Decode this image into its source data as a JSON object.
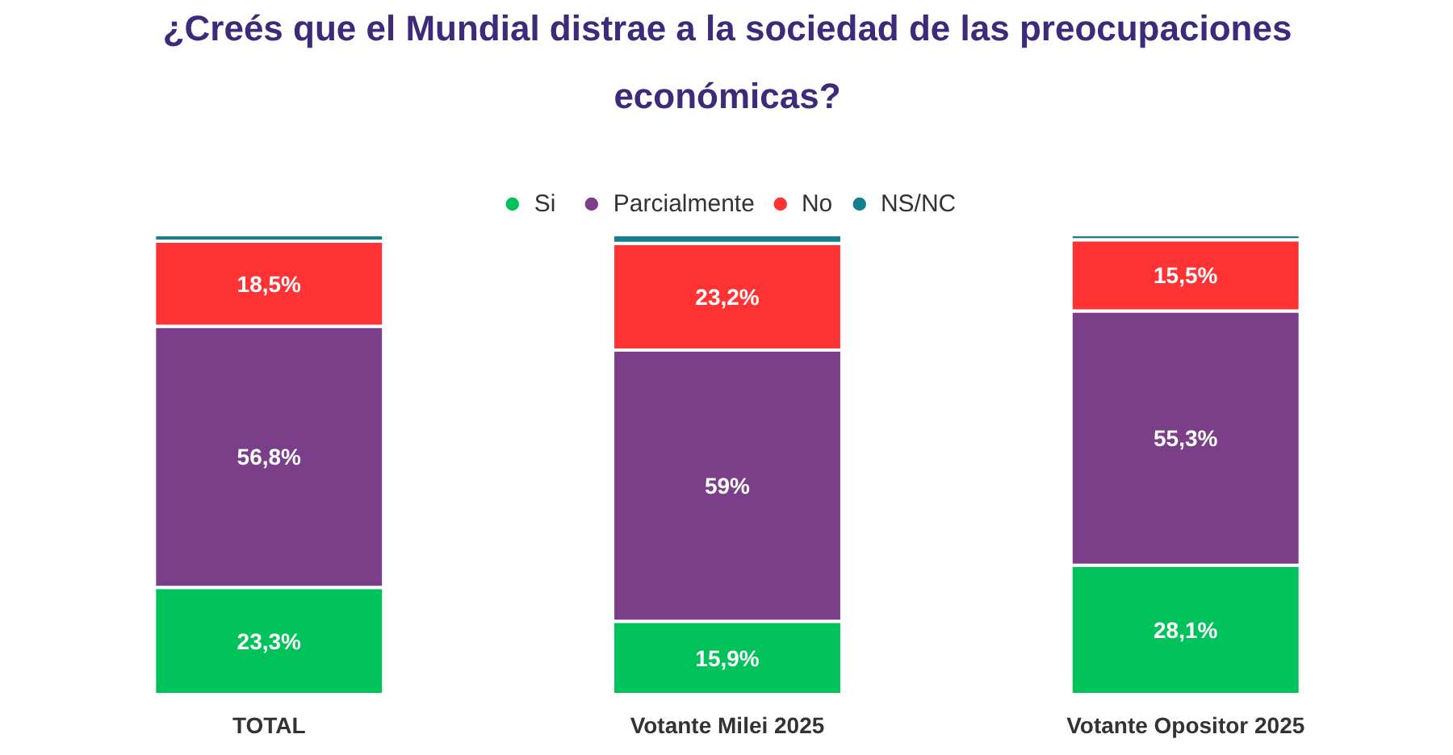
{
  "chart_data": {
    "type": "bar",
    "stacked": true,
    "title": "¿Creés que el Mundial distrae a la sociedad de las preocupaciones económicas?",
    "categories": [
      "TOTAL",
      "Votante Milei 2025",
      "Votante Opositor 2025"
    ],
    "series": [
      {
        "name": "Si",
        "color": "#00c25a",
        "values": [
          23.3,
          15.9,
          28.1
        ],
        "value_labels": [
          "23,3%",
          "15,9%",
          "28,1%"
        ]
      },
      {
        "name": "Parcialmente",
        "color": "#7b3f8a",
        "values": [
          56.8,
          59,
          55.3
        ],
        "value_labels": [
          "56,8%",
          "59%",
          "55,3%"
        ]
      },
      {
        "name": "No",
        "color": "#ff3333",
        "values": [
          18.5,
          23.2,
          15.5
        ],
        "value_labels": [
          "18,5%",
          "23,2%",
          "15,5%"
        ]
      },
      {
        "name": "NS/NC",
        "color": "#14808f",
        "values": [
          1.4,
          1.9,
          1.1
        ],
        "value_labels": [
          null,
          null,
          null
        ]
      }
    ],
    "legend": "top",
    "grid": false
  }
}
